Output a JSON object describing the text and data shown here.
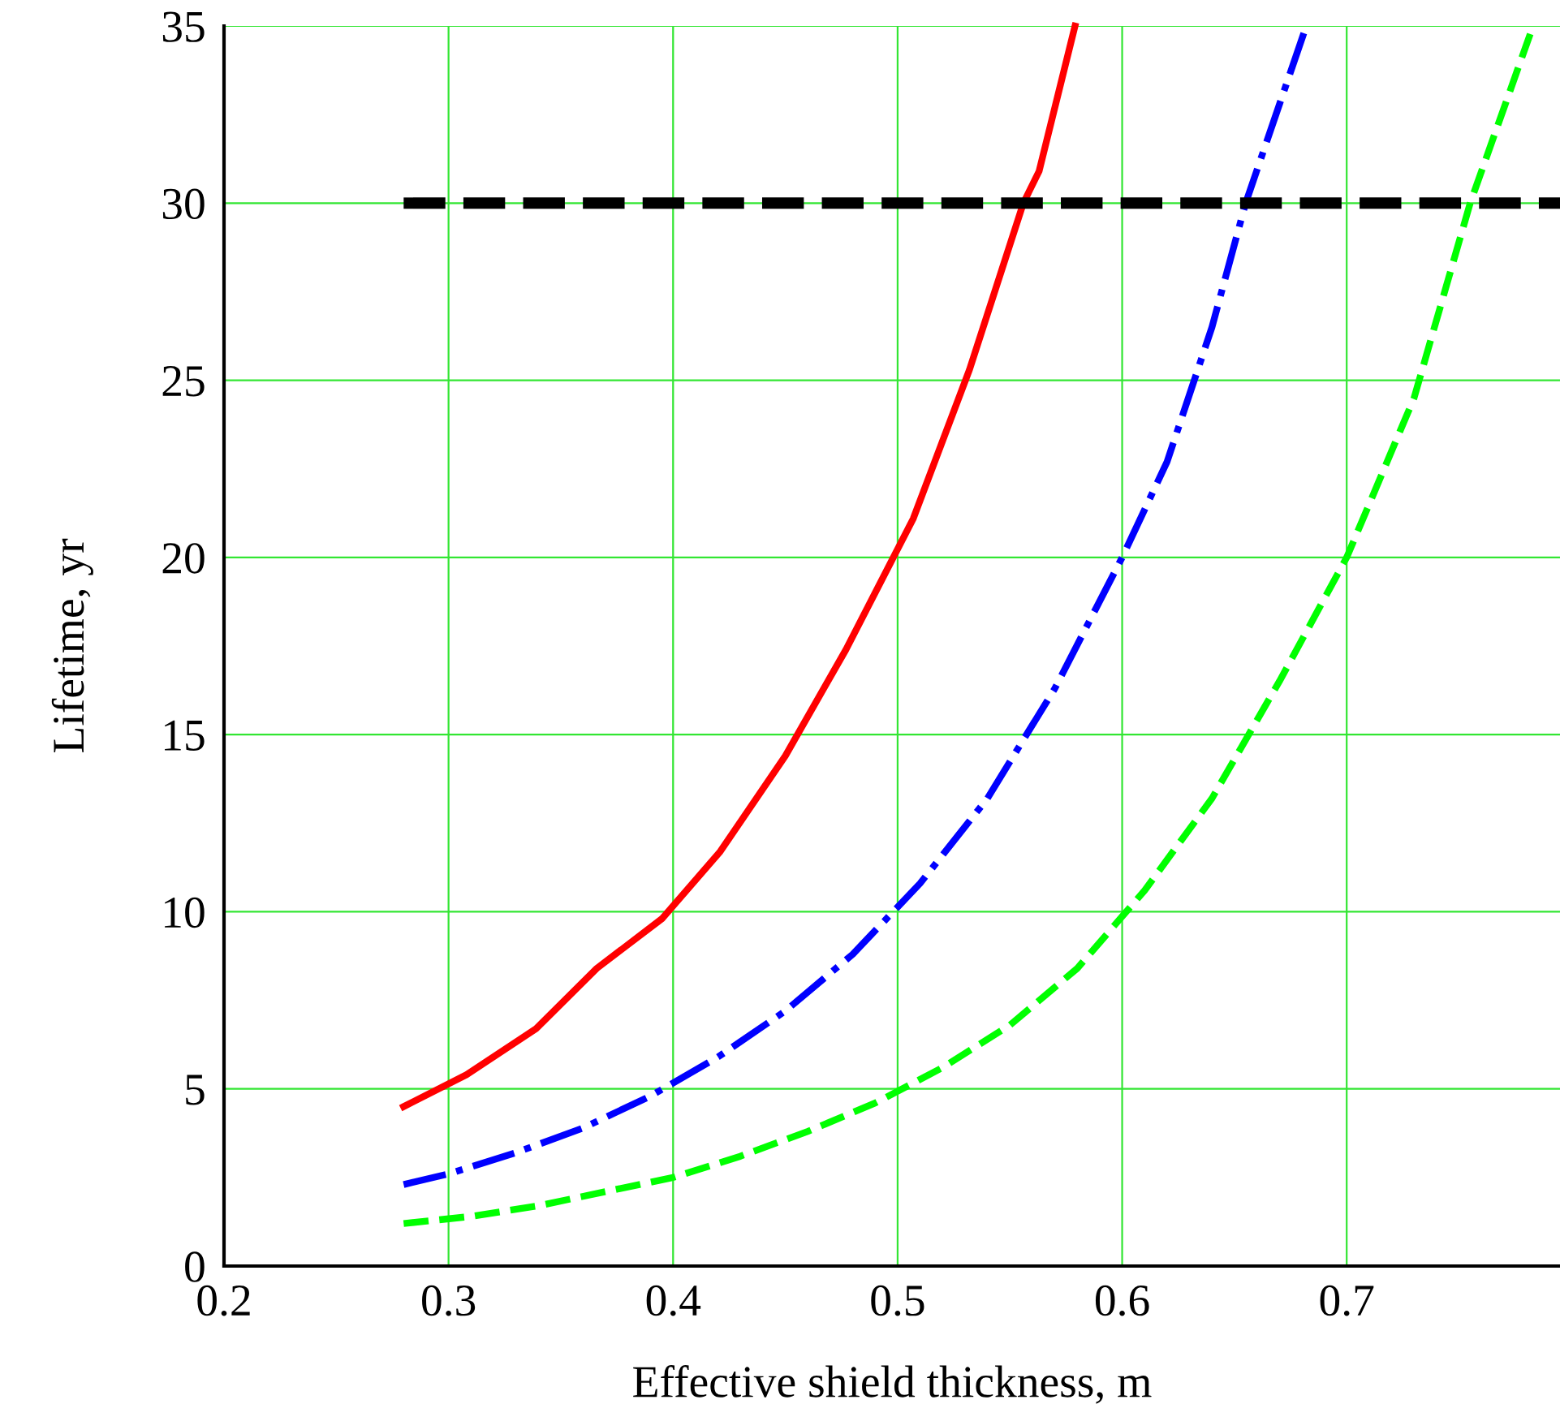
{
  "chart_data": {
    "type": "line",
    "xlabel": "Effective shield thickness, m",
    "ylabel": "Lifetime, yr",
    "xlim": [
      0.2,
      0.795
    ],
    "ylim": [
      0,
      35
    ],
    "xticks": [
      0.2,
      0.3,
      0.4,
      0.5,
      0.6,
      0.7
    ],
    "yticks": [
      0,
      5,
      10,
      15,
      20,
      25,
      30,
      35
    ],
    "grid": true,
    "marker": "none",
    "series": [
      {
        "color": "#ff0000",
        "line_style": "solid",
        "x": [
          0.28,
          0.308,
          0.339,
          0.366,
          0.395,
          0.421,
          0.45,
          0.477,
          0.507,
          0.532,
          0.556,
          0.563,
          0.579
        ],
        "values": [
          4.5,
          5.4,
          6.7,
          8.4,
          9.8,
          11.7,
          14.4,
          17.4,
          21.1,
          25.3,
          30.0,
          30.9,
          35
        ]
      },
      {
        "color": "#0000ff",
        "line_style": "dashdot",
        "x": [
          0.28,
          0.3,
          0.33,
          0.36,
          0.39,
          0.42,
          0.45,
          0.48,
          0.51,
          0.54,
          0.57,
          0.6,
          0.62,
          0.64,
          0.655,
          0.682
        ],
        "values": [
          2.3,
          2.6,
          3.2,
          3.9,
          4.8,
          5.9,
          7.2,
          8.8,
          10.8,
          13.2,
          16.3,
          20.0,
          22.7,
          26.5,
          30.0,
          35
        ]
      },
      {
        "color": "#00ff00",
        "line_style": "dashed",
        "x": [
          0.28,
          0.31,
          0.34,
          0.37,
          0.4,
          0.43,
          0.46,
          0.49,
          0.52,
          0.55,
          0.58,
          0.61,
          0.64,
          0.67,
          0.7,
          0.73,
          0.755,
          0.783
        ],
        "values": [
          1.2,
          1.4,
          1.7,
          2.1,
          2.5,
          3.1,
          3.8,
          4.6,
          5.6,
          6.8,
          8.4,
          10.6,
          13.2,
          16.5,
          20.0,
          24.5,
          30.0,
          35
        ]
      },
      {
        "color": "#000000",
        "line_style": "dashed",
        "x": [
          0.28,
          0.795
        ],
        "values": [
          30,
          30
        ]
      }
    ]
  }
}
